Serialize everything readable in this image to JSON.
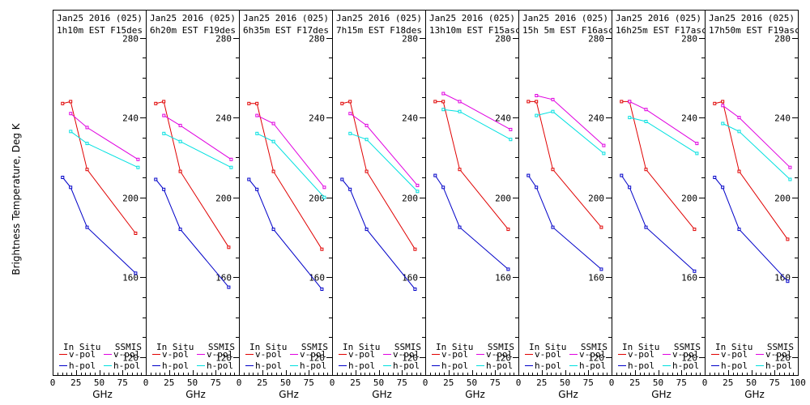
{
  "figure": {
    "ylabel": "Brightness Temperature, Deg K",
    "xlabel": "GHz",
    "colors": {
      "insitu_v": "#e00000",
      "insitu_h": "#0000c8",
      "ssmis_v": "#e000e0",
      "ssmis_h": "#00e0e0"
    },
    "legend": {
      "insitu_title": "In Situ",
      "ssmis_title": "SSMIS",
      "vpol": "v-pol",
      "hpol": "h-pol"
    },
    "xticks": [
      "0",
      "25",
      "50",
      "75",
      "100"
    ],
    "yticks": [
      "120",
      "160",
      "200",
      "240",
      "280"
    ]
  },
  "chart_data": [
    {
      "type": "line",
      "title": "Jan25 2016 (025)",
      "subtitle": "1h10m EST F15des",
      "xlim": [
        0,
        100
      ],
      "ylim": [
        111,
        294
      ],
      "series": [
        {
          "name": "In Situ v-pol",
          "x": [
            10.7,
            19.3,
            37,
            89
          ],
          "y": [
            247,
            248,
            214,
            182
          ]
        },
        {
          "name": "In Situ h-pol",
          "x": [
            10.7,
            19.3,
            37,
            89
          ],
          "y": [
            210,
            205,
            185,
            162
          ]
        },
        {
          "name": "SSMIS v-pol",
          "x": [
            19.35,
            37,
            91.65
          ],
          "y": [
            242,
            235,
            219
          ]
        },
        {
          "name": "SSMIS h-pol",
          "x": [
            19.35,
            37,
            91.65
          ],
          "y": [
            233,
            227,
            215
          ]
        }
      ]
    },
    {
      "type": "line",
      "title": "Jan25 2016 (025)",
      "subtitle": "6h20m EST F19des",
      "xlim": [
        0,
        100
      ],
      "ylim": [
        111,
        294
      ],
      "series": [
        {
          "name": "In Situ v-pol",
          "x": [
            10.7,
            19.3,
            37,
            89
          ],
          "y": [
            247,
            248,
            213,
            175
          ]
        },
        {
          "name": "In Situ h-pol",
          "x": [
            10.7,
            19.3,
            37,
            89
          ],
          "y": [
            209,
            204,
            184,
            155
          ]
        },
        {
          "name": "SSMIS v-pol",
          "x": [
            19.35,
            37,
            91.65
          ],
          "y": [
            241,
            236,
            219
          ]
        },
        {
          "name": "SSMIS h-pol",
          "x": [
            19.35,
            37,
            91.65
          ],
          "y": [
            232,
            228,
            215
          ]
        }
      ]
    },
    {
      "type": "line",
      "title": "Jan25 2016 (025)",
      "subtitle": "6h35m EST F17des",
      "xlim": [
        0,
        100
      ],
      "ylim": [
        111,
        294
      ],
      "series": [
        {
          "name": "In Situ v-pol",
          "x": [
            10.7,
            19.3,
            37,
            89
          ],
          "y": [
            247,
            247,
            213,
            174
          ]
        },
        {
          "name": "In Situ h-pol",
          "x": [
            10.7,
            19.3,
            37,
            89
          ],
          "y": [
            209,
            204,
            184,
            154
          ]
        },
        {
          "name": "SSMIS v-pol",
          "x": [
            19.35,
            37,
            91.65
          ],
          "y": [
            241,
            237,
            205
          ]
        },
        {
          "name": "SSMIS h-pol",
          "x": [
            19.35,
            37,
            91.65
          ],
          "y": [
            232,
            228,
            200
          ]
        }
      ]
    },
    {
      "type": "line",
      "title": "Jan25 2016 (025)",
      "subtitle": "7h15m EST F18des",
      "xlim": [
        0,
        100
      ],
      "ylim": [
        111,
        294
      ],
      "series": [
        {
          "name": "In Situ v-pol",
          "x": [
            10.7,
            19.3,
            37,
            89
          ],
          "y": [
            247,
            248,
            213,
            174
          ]
        },
        {
          "name": "In Situ h-pol",
          "x": [
            10.7,
            19.3,
            37,
            89
          ],
          "y": [
            209,
            204,
            184,
            154
          ]
        },
        {
          "name": "SSMIS v-pol",
          "x": [
            19.35,
            37,
            91.65
          ],
          "y": [
            242,
            236,
            206
          ]
        },
        {
          "name": "SSMIS h-pol",
          "x": [
            19.35,
            37,
            91.65
          ],
          "y": [
            232,
            229,
            203
          ]
        }
      ]
    },
    {
      "type": "line",
      "title": "Jan25 2016 (025)",
      "subtitle": "13h10m EST F15asc",
      "xlim": [
        0,
        100
      ],
      "ylim": [
        111,
        294
      ],
      "series": [
        {
          "name": "In Situ v-pol",
          "x": [
            10.7,
            19.3,
            37,
            89
          ],
          "y": [
            248,
            248,
            214,
            184
          ]
        },
        {
          "name": "In Situ h-pol",
          "x": [
            10.7,
            19.3,
            37,
            89
          ],
          "y": [
            211,
            205,
            185,
            164
          ]
        },
        {
          "name": "SSMIS v-pol",
          "x": [
            19.35,
            37,
            91.65
          ],
          "y": [
            252,
            248,
            234
          ]
        },
        {
          "name": "SSMIS h-pol",
          "x": [
            19.35,
            37,
            91.65
          ],
          "y": [
            244,
            243,
            229
          ]
        }
      ]
    },
    {
      "type": "line",
      "title": "Jan25 2016 (025)",
      "subtitle": "15h 5m EST F16asc",
      "xlim": [
        0,
        100
      ],
      "ylim": [
        111,
        294
      ],
      "series": [
        {
          "name": "In Situ v-pol",
          "x": [
            10.7,
            19.3,
            37,
            89
          ],
          "y": [
            248,
            248,
            214,
            185
          ]
        },
        {
          "name": "In Situ h-pol",
          "x": [
            10.7,
            19.3,
            37,
            89
          ],
          "y": [
            211,
            205,
            185,
            164
          ]
        },
        {
          "name": "SSMIS v-pol",
          "x": [
            19.35,
            37,
            91.65
          ],
          "y": [
            251,
            249,
            226
          ]
        },
        {
          "name": "SSMIS h-pol",
          "x": [
            19.35,
            37,
            91.65
          ],
          "y": [
            241,
            243,
            222
          ]
        }
      ]
    },
    {
      "type": "line",
      "title": "Jan25 2016 (025)",
      "subtitle": "16h25m EST F17asc",
      "xlim": [
        0,
        100
      ],
      "ylim": [
        111,
        294
      ],
      "series": [
        {
          "name": "In Situ v-pol",
          "x": [
            10.7,
            19.3,
            37,
            89
          ],
          "y": [
            248,
            248,
            214,
            184
          ]
        },
        {
          "name": "In Situ h-pol",
          "x": [
            10.7,
            19.3,
            37,
            89
          ],
          "y": [
            211,
            205,
            185,
            163
          ]
        },
        {
          "name": "SSMIS v-pol",
          "x": [
            19.35,
            37,
            91.65
          ],
          "y": [
            248,
            244,
            227
          ]
        },
        {
          "name": "SSMIS h-pol",
          "x": [
            19.35,
            37,
            91.65
          ],
          "y": [
            240,
            238,
            222
          ]
        }
      ]
    },
    {
      "type": "line",
      "title": "Jan25 2016 (025)",
      "subtitle": "17h50m EST F19asc",
      "xlim": [
        0,
        100
      ],
      "ylim": [
        111,
        294
      ],
      "series": [
        {
          "name": "In Situ v-pol",
          "x": [
            10.7,
            19.3,
            37,
            89
          ],
          "y": [
            247,
            248,
            213,
            179
          ]
        },
        {
          "name": "In Situ h-pol",
          "x": [
            10.7,
            19.3,
            37,
            89
          ],
          "y": [
            210,
            205,
            184,
            158
          ]
        },
        {
          "name": "SSMIS v-pol",
          "x": [
            19.35,
            37,
            91.65
          ],
          "y": [
            246,
            240,
            215
          ]
        },
        {
          "name": "SSMIS h-pol",
          "x": [
            19.35,
            37,
            91.65
          ],
          "y": [
            237,
            233,
            209
          ]
        }
      ]
    }
  ]
}
